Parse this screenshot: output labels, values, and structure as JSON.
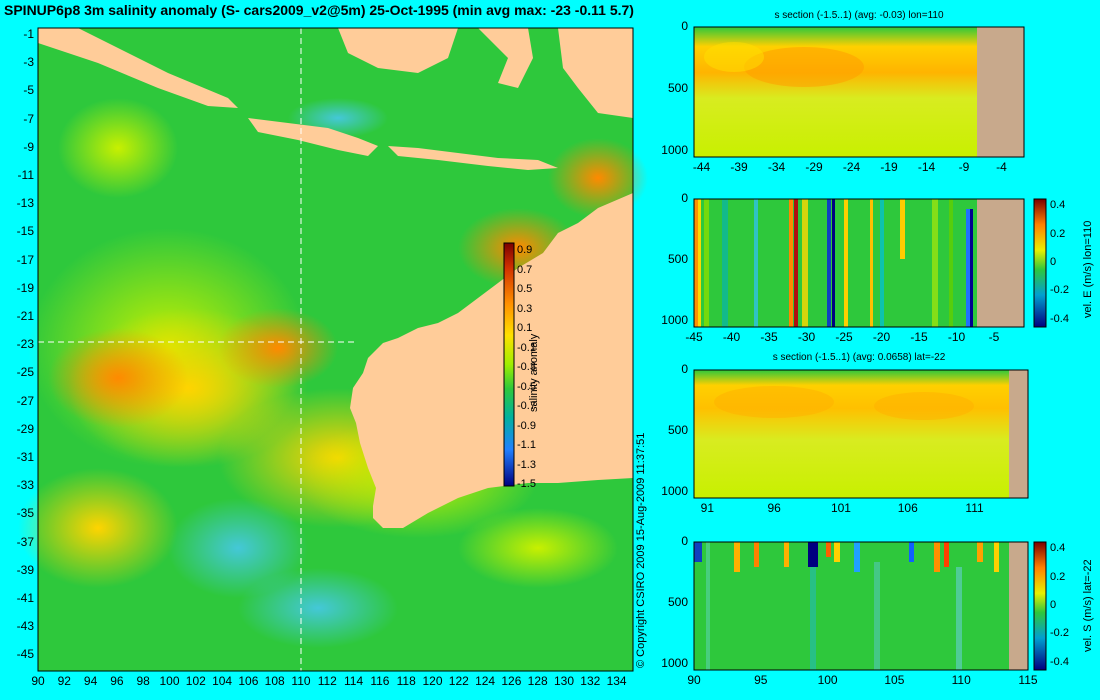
{
  "main_title": "SPINUP6p8 3m salinity anomaly (S- cars2009_v2@5m) 25-Oct-1995 (min avg max: -23 -0.11 5.7)",
  "copyright": "© Copyright CSIRO 2009  15-Aug-2009 11:37:51",
  "colors": {
    "background": "#00ffff",
    "land": "#ffcc99",
    "section_land": "#c8a98c"
  },
  "chart_data": [
    {
      "type": "heatmap",
      "panel": "map",
      "title": "SPINUP6p8 3m salinity anomaly (S- cars2009_v2@5m) 25-Oct-1995 (min avg max: -23 -0.11 5.7)",
      "x_ticks": [
        "90",
        "92",
        "94",
        "96",
        "98",
        "100",
        "102",
        "104",
        "106",
        "108",
        "110",
        "112",
        "114",
        "116",
        "118",
        "120",
        "122",
        "124",
        "126",
        "128",
        "130",
        "132",
        "134"
      ],
      "y_ticks": [
        "-1",
        "-3",
        "-5",
        "-7",
        "-9",
        "-11",
        "-13",
        "-15",
        "-17",
        "-19",
        "-21",
        "-23",
        "-25",
        "-27",
        "-29",
        "-31",
        "-33",
        "-35",
        "-37",
        "-39",
        "-41",
        "-43",
        "-45"
      ],
      "xlim": [
        90,
        135
      ],
      "ylim": [
        -45,
        0
      ],
      "section_lines": {
        "lon": 110,
        "lat": -22
      },
      "stats": {
        "min": -23,
        "avg": -0.11,
        "max": 5.7
      },
      "colorbar": {
        "label": "salinity anomaly",
        "ticks": [
          "0.9",
          "0.7",
          "0.5",
          "0.3",
          "0.1",
          "-0.1",
          "-0.3",
          "-0.5",
          "-0.7",
          "-0.9",
          "-1.1",
          "-1.3",
          "-1.5"
        ],
        "range": [
          -1.5,
          1.0
        ]
      }
    },
    {
      "type": "heatmap",
      "panel": "s-section-lon110",
      "title": "s section (-1.5..1) (avg: -0.03) lon=110",
      "x_ticks": [
        "-44",
        "-39",
        "-34",
        "-29",
        "-24",
        "-19",
        "-14",
        "-9",
        "-4"
      ],
      "y_ticks": [
        "0",
        "500",
        "1000"
      ],
      "xlim": [
        -45,
        -1
      ],
      "ylim": [
        1050,
        0
      ],
      "avg": -0.03
    },
    {
      "type": "heatmap",
      "panel": "vel-e-lon110",
      "title": "",
      "x_ticks": [
        "-45",
        "-40",
        "-35",
        "-30",
        "-25",
        "-20",
        "-15",
        "-10",
        "-5"
      ],
      "y_ticks": [
        "0",
        "500",
        "1000"
      ],
      "xlim": [
        -45,
        -1
      ],
      "ylim": [
        1050,
        0
      ],
      "colorbar": {
        "label": "vel. E (m/s) lon=110",
        "ticks": [
          "0.4",
          "0.2",
          "0",
          "-0.2",
          "-0.4"
        ],
        "range": [
          -0.45,
          0.45
        ]
      }
    },
    {
      "type": "heatmap",
      "panel": "s-section-lat-22",
      "title": "s section (-1.5..1) (avg: 0.0658) lat=-22",
      "x_ticks": [
        "91",
        "96",
        "101",
        "106",
        "111"
      ],
      "y_ticks": [
        "0",
        "500",
        "1000"
      ],
      "xlim": [
        90,
        115
      ],
      "ylim": [
        1050,
        0
      ],
      "avg": 0.0658
    },
    {
      "type": "heatmap",
      "panel": "vel-s-lat-22",
      "title": "",
      "x_ticks": [
        "90",
        "95",
        "100",
        "105",
        "110",
        "115"
      ],
      "y_ticks": [
        "0",
        "500",
        "1000"
      ],
      "xlim": [
        90,
        115
      ],
      "ylim": [
        1050,
        0
      ],
      "colorbar": {
        "label": "vel. S (m/s) lat=-22",
        "ticks": [
          "0.4",
          "0.2",
          "0",
          "-0.2",
          "-0.4"
        ],
        "range": [
          -0.45,
          0.45
        ]
      }
    }
  ]
}
